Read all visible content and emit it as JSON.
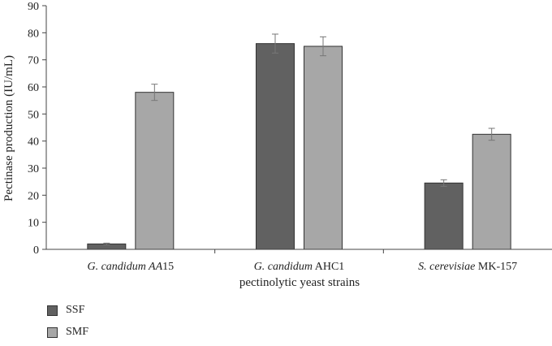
{
  "chart_data": {
    "type": "bar",
    "categories": [
      {
        "parts": [
          {
            "text": "G. candidum AA",
            "italic": true
          },
          {
            "text": "15",
            "italic": false
          }
        ]
      },
      {
        "parts": [
          {
            "text": "G. candidum",
            "italic": true
          },
          {
            "text": " AHC1",
            "italic": false
          }
        ]
      },
      {
        "parts": [
          {
            "text": "S. cerevisiae",
            "italic": true
          },
          {
            "text": " MK-157",
            "italic": false
          }
        ]
      }
    ],
    "category_names": [
      "G. candidum AA15",
      "G. candidum AHC1",
      "S. cerevisiae MK-157"
    ],
    "series": [
      {
        "name": "SSF",
        "color": "#616161",
        "values": [
          2,
          76,
          24.5
        ],
        "errors": [
          0.3,
          3.5,
          1.2
        ]
      },
      {
        "name": "SMF",
        "color": "#a7a7a7",
        "values": [
          58,
          75,
          42.5
        ],
        "errors": [
          3,
          3.5,
          2.2
        ]
      }
    ],
    "xlabel": "pectinolytic yeast strains",
    "ylabel": "Pectinase production (IU/mL)",
    "ylim": [
      0,
      90
    ],
    "yticks": [
      0,
      10,
      20,
      30,
      40,
      50,
      60,
      70,
      80,
      90
    ],
    "grid": false,
    "legend_position": "bottom-left"
  }
}
